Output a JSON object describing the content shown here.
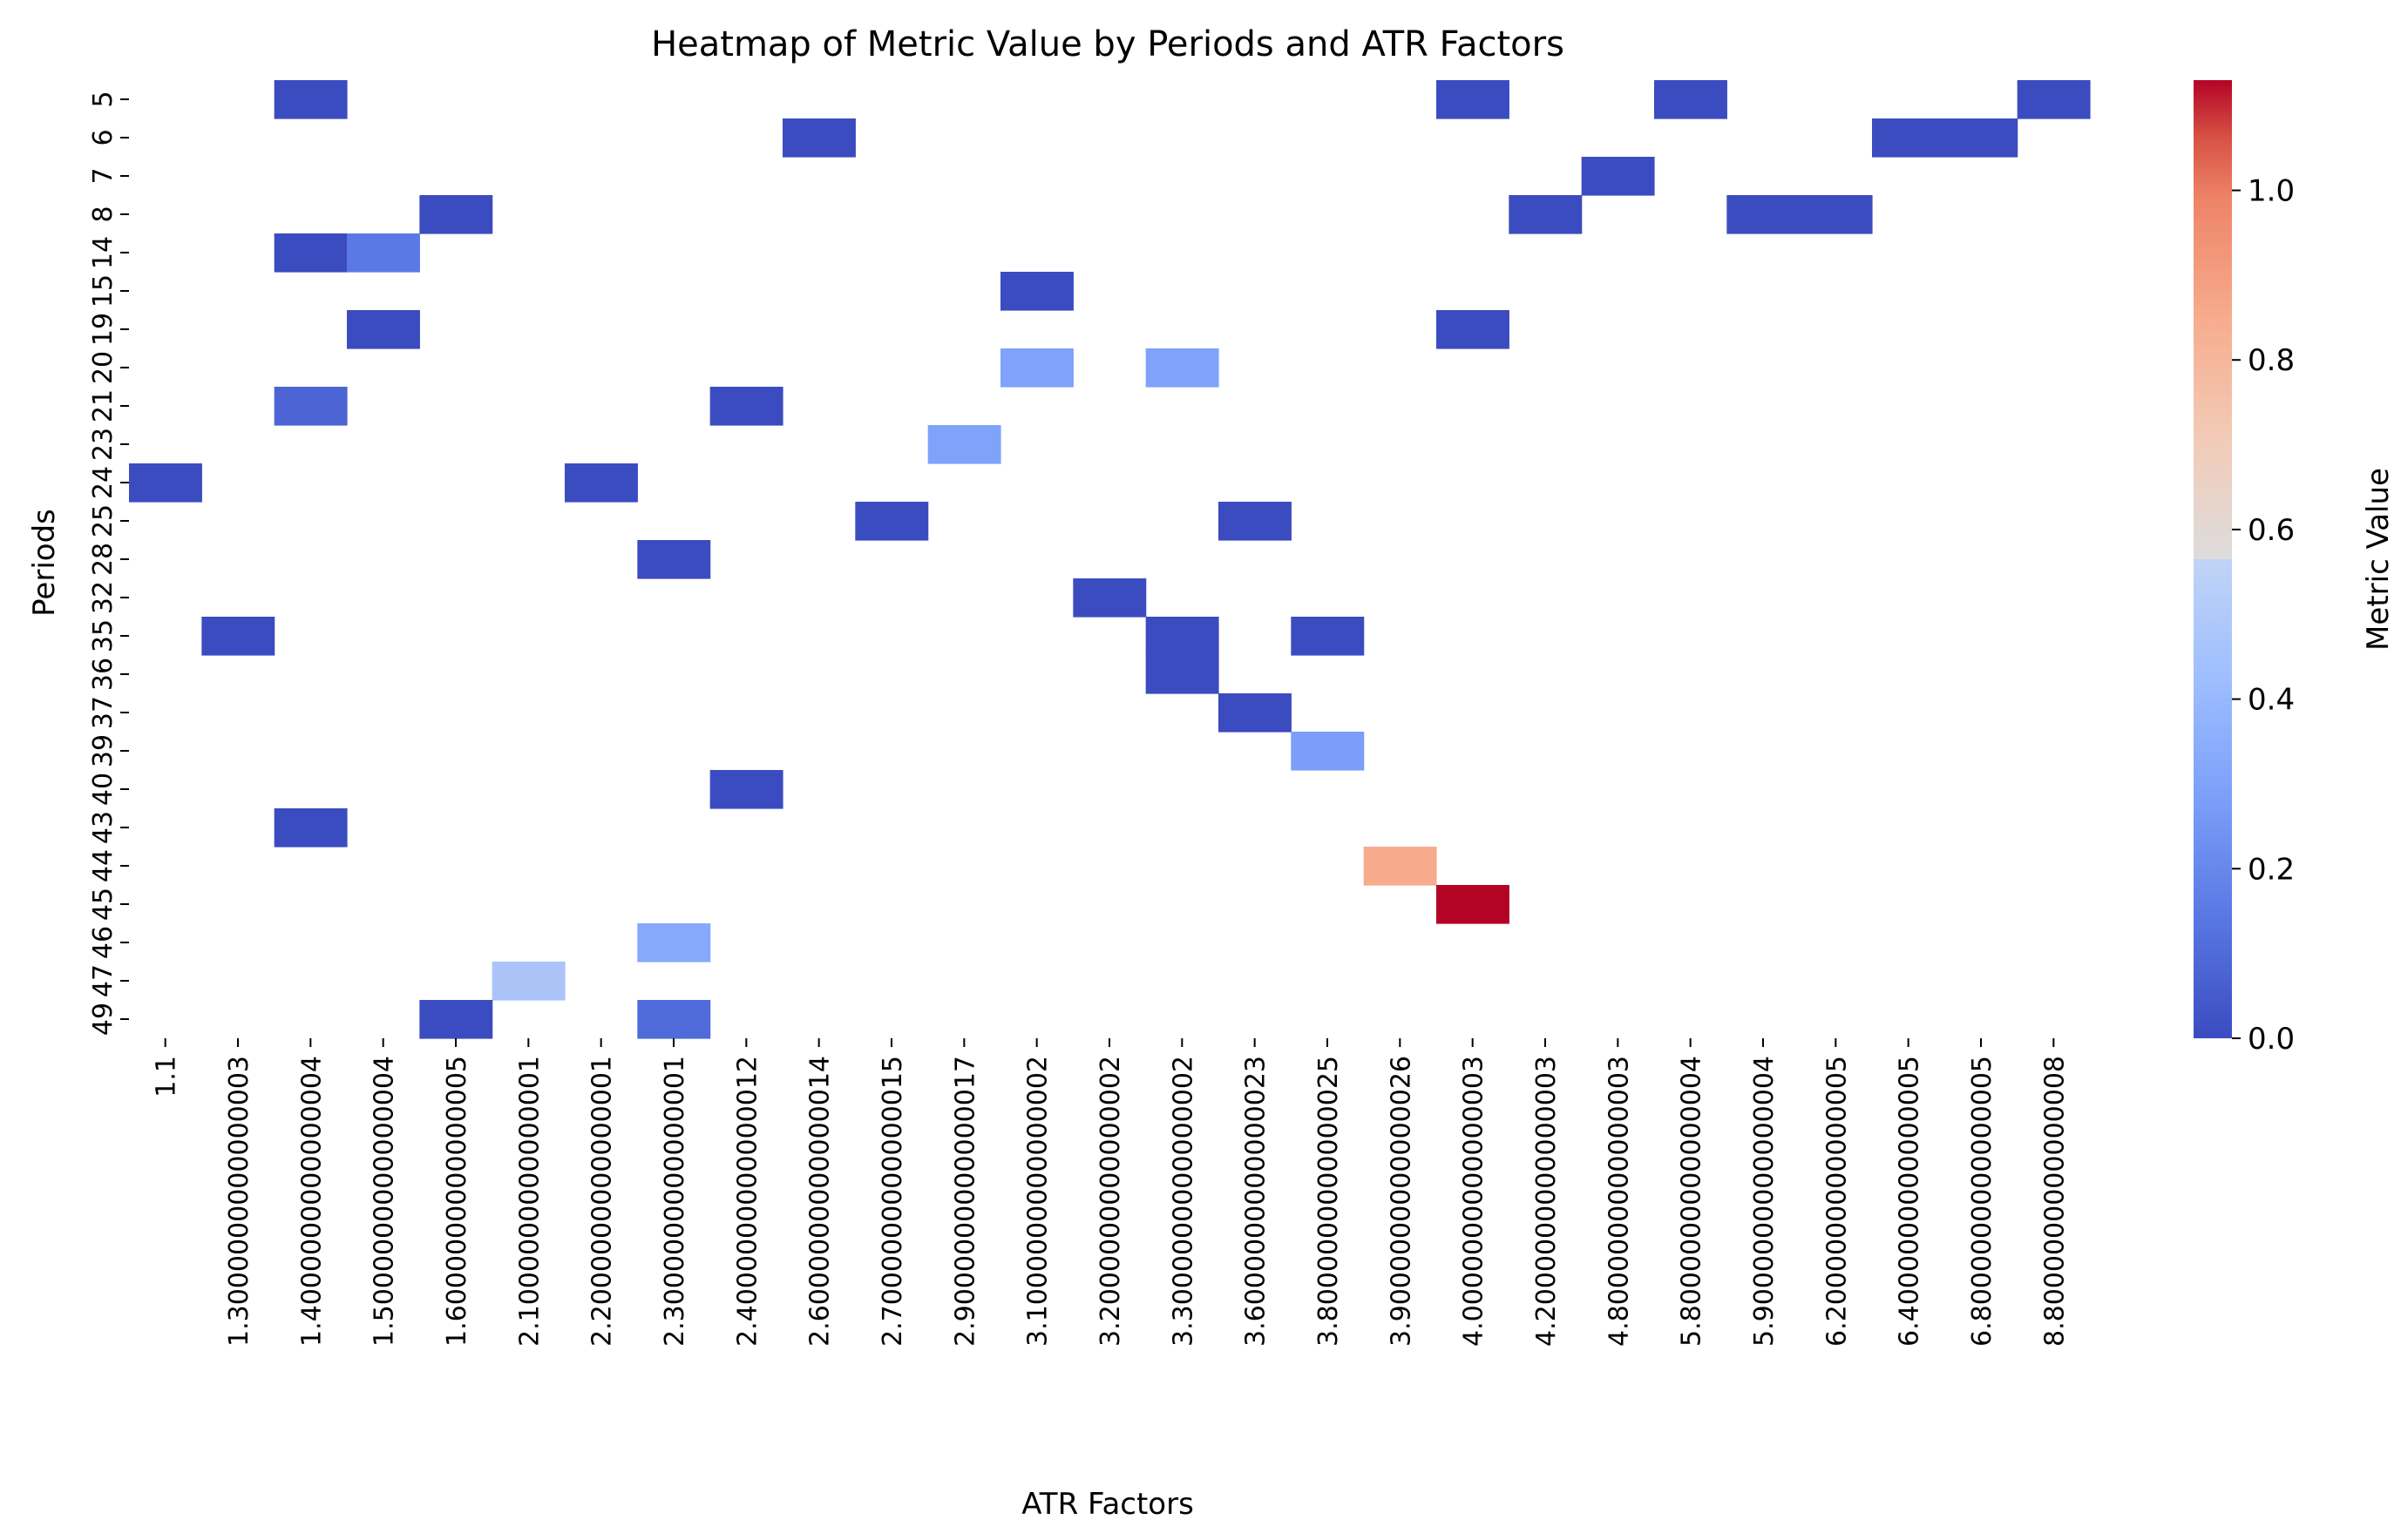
{
  "chart_data": {
    "type": "heatmap",
    "title": "Heatmap of Metric Value by Periods and ATR Factors",
    "xlabel": "ATR Factors",
    "ylabel": "Periods",
    "colorbar_label": "Metric Value",
    "colormap": "coolwarm",
    "vmin": 0.0,
    "vmax": 1.13,
    "colorbar_ticks": [
      "0.0",
      "0.2",
      "0.4",
      "0.6",
      "0.8",
      "1.0"
    ],
    "colorbar_tick_values": [
      0.0,
      0.2,
      0.4,
      0.6,
      0.8,
      1.0
    ],
    "x_categories": [
      "1.1",
      "1.3000000000000003",
      "1.4000000000000004",
      "1.5000000000000004",
      "1.6000000000000005",
      "2.1000000000000001",
      "2.2000000000000001",
      "2.3000000000000001",
      "2.4000000000000012",
      "2.6000000000000014",
      "2.7000000000000015",
      "2.9000000000000017",
      "3.1000000000000002",
      "3.2000000000000002",
      "3.3000000000000002",
      "3.6000000000000023",
      "3.8000000000000025",
      "3.9000000000000026",
      "4.0000000000000003",
      "4.2000000000000003",
      "4.8000000000000003",
      "5.8000000000000004",
      "5.9000000000000004",
      "6.2000000000000005",
      "6.4000000000000005",
      "6.8000000000000005",
      "8.8000000000000008"
    ],
    "y_categories": [
      "5",
      "6",
      "7",
      "8",
      "14",
      "15",
      "19",
      "20",
      "21",
      "23",
      "24",
      "25",
      "28",
      "32",
      "35",
      "36",
      "37",
      "39",
      "40",
      "43",
      "44",
      "45",
      "46",
      "47",
      "49"
    ],
    "cells": [
      {
        "period": "5",
        "atr": "1.4000000000000004",
        "value": 0.0
      },
      {
        "period": "5",
        "atr": "4.0000000000000003",
        "value": 0.0
      },
      {
        "period": "5",
        "atr": "5.8000000000000004",
        "value": 0.0
      },
      {
        "period": "5",
        "atr": "8.8000000000000008",
        "value": 0.0
      },
      {
        "period": "6",
        "atr": "2.6000000000000014",
        "value": 0.0
      },
      {
        "period": "6",
        "atr": "6.4000000000000005",
        "value": 0.0
      },
      {
        "period": "6",
        "atr": "6.8000000000000005",
        "value": 0.0
      },
      {
        "period": "7",
        "atr": "4.8000000000000003",
        "value": 0.0
      },
      {
        "period": "8",
        "atr": "1.6000000000000005",
        "value": 0.0
      },
      {
        "period": "8",
        "atr": "4.2000000000000003",
        "value": 0.0
      },
      {
        "period": "8",
        "atr": "5.9000000000000004",
        "value": 0.0
      },
      {
        "period": "8",
        "atr": "6.2000000000000005",
        "value": 0.0
      },
      {
        "period": "14",
        "atr": "1.4000000000000004",
        "value": 0.0
      },
      {
        "period": "14",
        "atr": "1.5000000000000004",
        "value": 0.15
      },
      {
        "period": "15",
        "atr": "3.1000000000000002",
        "value": 0.0
      },
      {
        "period": "19",
        "atr": "1.5000000000000004",
        "value": 0.0
      },
      {
        "period": "19",
        "atr": "4.0000000000000003",
        "value": 0.0
      },
      {
        "period": "20",
        "atr": "3.1000000000000002",
        "value": 0.3
      },
      {
        "period": "20",
        "atr": "3.3000000000000002",
        "value": 0.3
      },
      {
        "period": "21",
        "atr": "1.4000000000000004",
        "value": 0.08
      },
      {
        "period": "21",
        "atr": "2.4000000000000012",
        "value": 0.0
      },
      {
        "period": "23",
        "atr": "2.9000000000000017",
        "value": 0.3
      },
      {
        "period": "24",
        "atr": "1.1",
        "value": 0.0
      },
      {
        "period": "24",
        "atr": "2.2000000000000001",
        "value": 0.0
      },
      {
        "period": "25",
        "atr": "2.7000000000000015",
        "value": 0.0
      },
      {
        "period": "25",
        "atr": "3.6000000000000023",
        "value": 0.0
      },
      {
        "period": "28",
        "atr": "2.3000000000000001",
        "value": 0.0
      },
      {
        "period": "32",
        "atr": "3.2000000000000002",
        "value": 0.0
      },
      {
        "period": "35",
        "atr": "1.3000000000000003",
        "value": 0.0
      },
      {
        "period": "35",
        "atr": "3.3000000000000002",
        "value": 0.0
      },
      {
        "period": "35",
        "atr": "3.8000000000000025",
        "value": 0.0
      },
      {
        "period": "36",
        "atr": "3.3000000000000002",
        "value": 0.0
      },
      {
        "period": "37",
        "atr": "3.6000000000000023",
        "value": 0.0
      },
      {
        "period": "39",
        "atr": "3.8000000000000025",
        "value": 0.28
      },
      {
        "period": "40",
        "atr": "2.4000000000000012",
        "value": 0.0
      },
      {
        "period": "43",
        "atr": "1.4000000000000004",
        "value": 0.0
      },
      {
        "period": "44",
        "atr": "3.9000000000000026",
        "value": 0.85
      },
      {
        "period": "45",
        "atr": "4.0000000000000003",
        "value": 1.13
      },
      {
        "period": "46",
        "atr": "2.3000000000000001",
        "value": 0.33
      },
      {
        "period": "47",
        "atr": "2.1000000000000001",
        "value": 0.45
      },
      {
        "period": "49",
        "atr": "1.6000000000000005",
        "value": 0.0
      },
      {
        "period": "49",
        "atr": "2.3000000000000001",
        "value": 0.1
      }
    ]
  }
}
